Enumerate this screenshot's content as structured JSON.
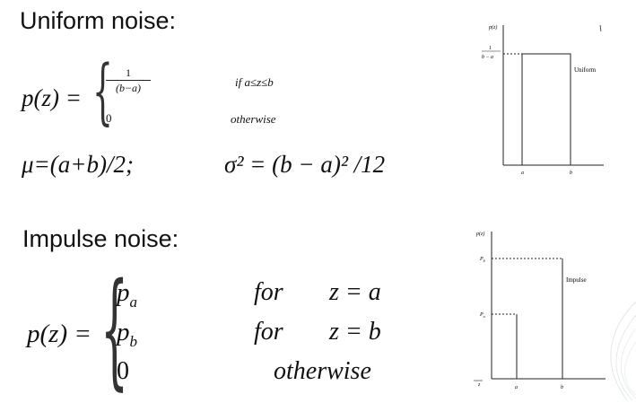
{
  "uniform": {
    "heading": "Uniform noise:",
    "pdf_lhs": "p(z) =",
    "case1_num": "1",
    "case1_den": "(b−a)",
    "case1_cond": "if   a≤z≤b",
    "case2_val": "0",
    "case2_cond": "otherwise",
    "mean": "μ=(a+b)/2;",
    "variance": "σ² = (b − a)² /12",
    "graph": {
      "ylabel": "p(z)",
      "level_num": "1",
      "level_den": "b − a",
      "a_label": "a",
      "b_label": "b",
      "curve_label": "Uniform"
    }
  },
  "impulse": {
    "heading": "Impulse noise:",
    "pdf_lhs": "p(z) =",
    "case1_val": "p",
    "case1_sub": "a",
    "case1_for": "for",
    "case1_cond": "z = a",
    "case2_val": "p",
    "case2_sub": "b",
    "case2_for": "for",
    "case2_cond": "z = b",
    "case3_val": "0",
    "case3_cond": "otherwise",
    "graph": {
      "ylabel": "p(z)",
      "pb_label": "P",
      "pb_sub": "b",
      "pa_label": "P",
      "pa_sub": "a",
      "a_label": "a",
      "b_label": "b",
      "z_label": "z",
      "curve_label": "Impulse"
    }
  }
}
